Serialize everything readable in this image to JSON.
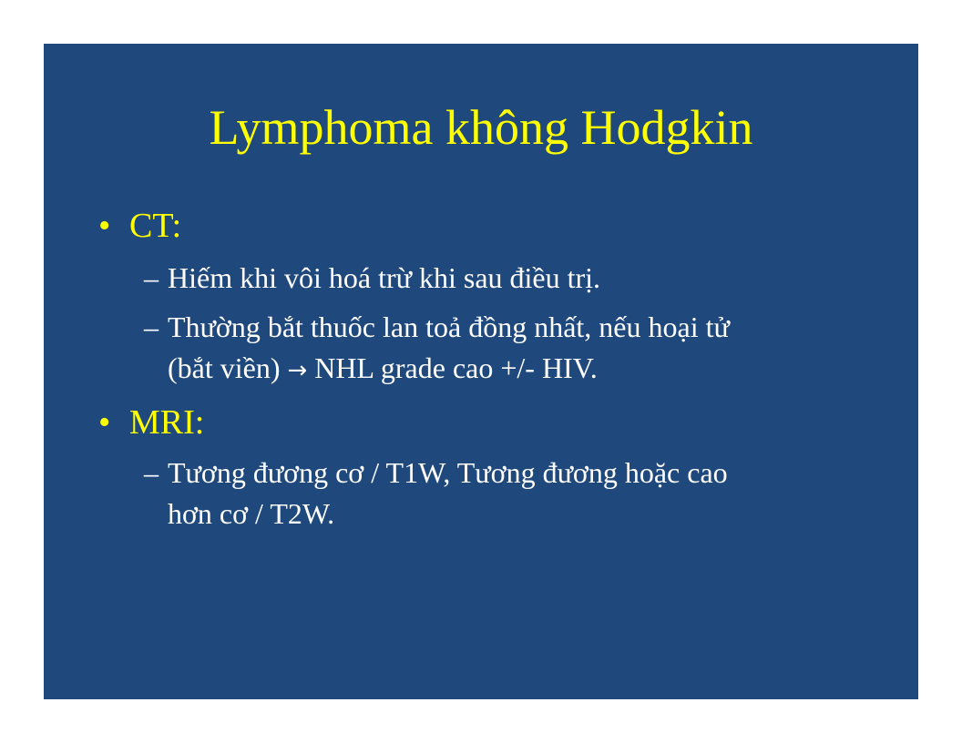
{
  "slide": {
    "title": "Lymphoma không Hodgkin",
    "bullet_marker": "•",
    "sub_marker": "–",
    "arrow_glyph": "→",
    "bullets": [
      {
        "label": "CT:",
        "items": [
          {
            "line1": "Hiếm khi vôi hoá trừ khi sau điều trị."
          },
          {
            "line1": "Thường bắt thuốc lan toả đồng nhất, nếu hoại tử",
            "line2_pre": "(bắt viền)",
            "line2_post": "NHL grade cao +/- HIV."
          }
        ]
      },
      {
        "label": "MRI:",
        "items": [
          {
            "line1": "Tương đương cơ / T1W, Tương đương hoặc cao",
            "line2": "hơn cơ / T2W."
          }
        ]
      }
    ],
    "colors": {
      "background": "#1f497d",
      "title": "#ffff00",
      "bullet": "#ffff00",
      "text": "#ffffff"
    }
  }
}
